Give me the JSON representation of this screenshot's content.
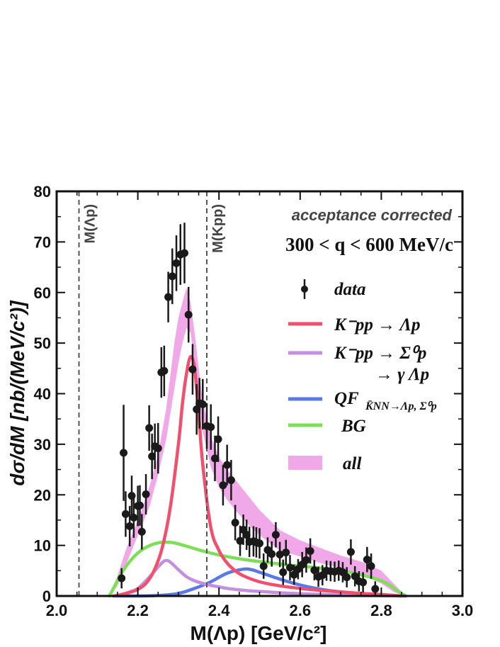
{
  "chart_data": {
    "type": "scatter",
    "title": "",
    "xlabel": "M(Λp) [GeV/c²]",
    "ylabel": "dσ/dM [nb/(MeV/c²)]",
    "xlim": [
      2.0,
      3.0
    ],
    "ylim": [
      0,
      80
    ],
    "x_ticks": [
      "2.0",
      "2.2",
      "2.4",
      "2.6",
      "2.8",
      "3.0"
    ],
    "y_ticks": [
      "0",
      "10",
      "20",
      "30",
      "40",
      "50",
      "60",
      "70",
      "80"
    ],
    "annotations": {
      "acceptance": "acceptance corrected",
      "q_range": "300 < q < 600 MeV/c"
    },
    "thresholds": [
      {
        "label": "M(Λp)",
        "x": 2.055
      },
      {
        "label": "M(Kpp)",
        "x": 2.37
      }
    ],
    "legend": {
      "data": "data",
      "kpp_lp": "K⁻pp → Λp",
      "kpp_sp": "K⁻pp → Σ⁰p",
      "kpp_sp_cont": "→ γ Λp",
      "qf": "QF",
      "qf_sub": "K̄NN→Λp, Σ⁰p",
      "bg": "BG",
      "all": "all"
    },
    "colors": {
      "kpp_lp": "#f0506e",
      "kpp_sp": "#c58fe0",
      "qf": "#5a78e6",
      "bg": "#7ddf58",
      "all_band": "#f0a8e8",
      "data": "#1a1a1a"
    },
    "series": [
      {
        "name": "data",
        "points": [
          [
            2.16,
            3.5,
            2
          ],
          [
            2.165,
            28.3,
            9.5
          ],
          [
            2.17,
            16.2,
            4.5
          ],
          [
            2.18,
            13.8,
            4
          ],
          [
            2.185,
            19.8,
            4
          ],
          [
            2.19,
            15.5,
            4
          ],
          [
            2.2,
            17.8,
            4
          ],
          [
            2.205,
            17.9,
            4
          ],
          [
            2.21,
            12.7,
            3.5
          ],
          [
            2.22,
            20.1,
            4
          ],
          [
            2.228,
            33.2,
            4.5
          ],
          [
            2.235,
            27.6,
            4.5
          ],
          [
            2.242,
            29.6,
            4.5
          ],
          [
            2.25,
            29.2,
            5
          ],
          [
            2.258,
            44.2,
            5
          ],
          [
            2.265,
            44.5,
            5
          ],
          [
            2.275,
            59.1,
            5
          ],
          [
            2.285,
            63.2,
            5.5
          ],
          [
            2.295,
            65.8,
            5.5
          ],
          [
            2.305,
            67.5,
            6
          ],
          [
            2.315,
            67.8,
            6
          ],
          [
            2.325,
            55.6,
            5.5
          ],
          [
            2.335,
            44.8,
            5
          ],
          [
            2.345,
            36.9,
            5
          ],
          [
            2.352,
            38.1,
            5
          ],
          [
            2.36,
            37.9,
            5
          ],
          [
            2.37,
            33.6,
            4.5
          ],
          [
            2.38,
            33.4,
            4.5
          ],
          [
            2.39,
            27.2,
            4.5
          ],
          [
            2.398,
            31.0,
            4.5
          ],
          [
            2.41,
            21.9,
            4
          ],
          [
            2.42,
            25.9,
            4
          ],
          [
            2.43,
            22.9,
            4
          ],
          [
            2.44,
            14.5,
            3.5
          ],
          [
            2.452,
            10.9,
            3
          ],
          [
            2.46,
            13.1,
            3
          ],
          [
            2.468,
            12.1,
            3
          ],
          [
            2.475,
            10.7,
            3
          ],
          [
            2.485,
            10.8,
            3
          ],
          [
            2.492,
            10.6,
            3
          ],
          [
            2.5,
            10.4,
            3
          ],
          [
            2.51,
            5.9,
            2.5
          ],
          [
            2.52,
            9.1,
            2.5
          ],
          [
            2.53,
            8.3,
            2.5
          ],
          [
            2.54,
            12.1,
            2.5
          ],
          [
            2.55,
            8.2,
            2.5
          ],
          [
            2.558,
            4.7,
            2.5
          ],
          [
            2.565,
            8.6,
            2.5
          ],
          [
            2.575,
            5.6,
            2.5
          ],
          [
            2.585,
            4.2,
            2
          ],
          [
            2.595,
            5.3,
            2
          ],
          [
            2.605,
            6.2,
            2.5
          ],
          [
            2.615,
            7.1,
            2.5
          ],
          [
            2.625,
            8.9,
            2.5
          ],
          [
            2.635,
            5.1,
            2
          ],
          [
            2.645,
            3.8,
            2
          ],
          [
            2.655,
            4.1,
            2
          ],
          [
            2.665,
            5.0,
            2
          ],
          [
            2.675,
            4.9,
            2
          ],
          [
            2.685,
            4.8,
            2
          ],
          [
            2.695,
            5.0,
            2
          ],
          [
            2.705,
            4.7,
            2
          ],
          [
            2.715,
            3.7,
            2
          ],
          [
            2.725,
            8.7,
            2.5
          ],
          [
            2.735,
            3.9,
            2
          ],
          [
            2.745,
            2.9,
            2
          ],
          [
            2.755,
            2.7,
            2
          ],
          [
            2.765,
            7.2,
            2.5
          ],
          [
            2.775,
            5.9,
            2.5
          ],
          [
            2.785,
            1.4,
            1.5
          ]
        ]
      },
      {
        "name": "K⁻pp → Λp",
        "x": [
          2.14,
          2.16,
          2.18,
          2.2,
          2.22,
          2.24,
          2.26,
          2.28,
          2.3,
          2.31,
          2.32,
          2.33,
          2.34,
          2.35,
          2.36,
          2.38,
          2.4,
          2.42,
          2.44,
          2.46,
          2.5,
          2.55,
          2.6,
          2.65,
          2.7,
          2.75,
          2.8,
          2.85
        ],
        "y": [
          0,
          0.3,
          0.7,
          1.3,
          2.5,
          5,
          9.5,
          17.5,
          30,
          38,
          44,
          47.3,
          45,
          36,
          26,
          13.5,
          9,
          6.5,
          5,
          4,
          2.8,
          2,
          1.5,
          1.1,
          0.8,
          0.5,
          0.3,
          0
        ]
      },
      {
        "name": "K⁻pp → Σ⁰p",
        "x": [
          2.14,
          2.16,
          2.18,
          2.2,
          2.22,
          2.24,
          2.26,
          2.27,
          2.28,
          2.3,
          2.32,
          2.34,
          2.36,
          2.38,
          2.4,
          2.42,
          2.44,
          2.48,
          2.52,
          2.56,
          2.6,
          2.65,
          2.7,
          2.75,
          2.8,
          2.85
        ],
        "y": [
          0,
          0.3,
          0.8,
          1.5,
          3,
          4.8,
          6.6,
          7,
          6.7,
          5.2,
          3.8,
          3,
          2.5,
          2.1,
          1.8,
          1.5,
          1.3,
          1,
          0.8,
          0.6,
          0.45,
          0.3,
          0.2,
          0.1,
          0.05,
          0
        ]
      },
      {
        "name": "QF",
        "x": [
          2.14,
          2.2,
          2.25,
          2.3,
          2.34,
          2.38,
          2.42,
          2.46,
          2.48,
          2.5,
          2.54,
          2.58,
          2.62,
          2.66,
          2.7,
          2.74,
          2.78,
          2.82,
          2.86
        ],
        "y": [
          0,
          0,
          0.1,
          0.5,
          1.5,
          2.8,
          4.5,
          5.3,
          5.2,
          4.7,
          3.6,
          2.6,
          1.8,
          1.2,
          0.8,
          0.5,
          0.3,
          0.1,
          0
        ]
      },
      {
        "name": "BG",
        "x": [
          2.13,
          2.14,
          2.16,
          2.18,
          2.2,
          2.22,
          2.24,
          2.26,
          2.28,
          2.3,
          2.33,
          2.36,
          2.4,
          2.44,
          2.48,
          2.52,
          2.56,
          2.6,
          2.64,
          2.68,
          2.72,
          2.76,
          2.8,
          2.82,
          2.84,
          2.86
        ],
        "y": [
          0,
          1.5,
          4.5,
          6.8,
          8.5,
          9.6,
          10.3,
          10.6,
          10.6,
          10.3,
          9.6,
          8.9,
          8.1,
          7.5,
          7,
          6.6,
          6.2,
          5.9,
          5.6,
          5.2,
          4.7,
          4,
          3,
          2.2,
          1,
          0
        ]
      },
      {
        "name": "all",
        "x": [
          2.13,
          2.15,
          2.17,
          2.19,
          2.21,
          2.23,
          2.25,
          2.27,
          2.29,
          2.3,
          2.31,
          2.32,
          2.33,
          2.34,
          2.35,
          2.36,
          2.38,
          2.4,
          2.42,
          2.44,
          2.46,
          2.48,
          2.5,
          2.55,
          2.6,
          2.65,
          2.7,
          2.75,
          2.8,
          2.83,
          2.86
        ],
        "lo": [
          0,
          2,
          6,
          10,
          14,
          18,
          24,
          31,
          41,
          46,
          50,
          53,
          52,
          46,
          39,
          32.5,
          25.5,
          21.5,
          19,
          17,
          15.2,
          13.5,
          12,
          9,
          7.8,
          6.5,
          5.5,
          4.2,
          2.5,
          0.8,
          0
        ],
        "hi": [
          0,
          4,
          9,
          13,
          17,
          22,
          28,
          37,
          50,
          55,
          58,
          61,
          58,
          52,
          45,
          38.5,
          31.5,
          27.5,
          25,
          23,
          21,
          19,
          17,
          13,
          11,
          9.5,
          8,
          6.8,
          5,
          2.5,
          0
        ]
      }
    ]
  }
}
